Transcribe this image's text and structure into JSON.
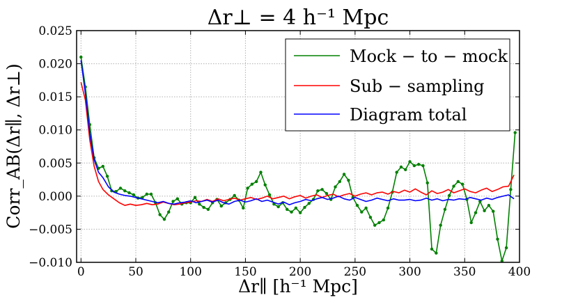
{
  "chart_data": {
    "type": "line",
    "title": "Δr⊥ = 4 h⁻¹ Mpc",
    "xlabel": "Δr∥ [h⁻¹ Mpc]",
    "ylabel": "Corr_AB(Δr∥, Δr⊥)",
    "xlim": [
      -4,
      400
    ],
    "ylim": [
      -0.01,
      0.025
    ],
    "xticks": [
      0,
      50,
      100,
      150,
      200,
      250,
      300,
      350,
      400
    ],
    "xtick_labels": [
      "0",
      "50",
      "100",
      "150",
      "200",
      "250",
      "300",
      "350",
      "400"
    ],
    "yticks": [
      -0.01,
      -0.005,
      0.0,
      0.005,
      0.01,
      0.015,
      0.02,
      0.025
    ],
    "ytick_labels": [
      "−0.010",
      "−0.005",
      "0.000",
      "0.005",
      "0.010",
      "0.015",
      "0.020",
      "0.025"
    ],
    "grid": true,
    "legend_position": "top-right",
    "legend": [
      "Mock − to − mock",
      "Sub − sampling",
      "Diagram total"
    ],
    "series": [
      {
        "name": "Mock − to − mock",
        "color": "#008000",
        "markers": true,
        "x": [
          0,
          4,
          8,
          12,
          16,
          20,
          24,
          28,
          32,
          36,
          40,
          44,
          48,
          52,
          56,
          60,
          64,
          68,
          72,
          76,
          80,
          84,
          88,
          92,
          96,
          100,
          104,
          108,
          112,
          116,
          120,
          124,
          128,
          132,
          136,
          140,
          144,
          148,
          152,
          156,
          160,
          164,
          168,
          172,
          176,
          180,
          184,
          188,
          192,
          196,
          200,
          204,
          208,
          212,
          216,
          220,
          224,
          228,
          232,
          236,
          240,
          244,
          248,
          252,
          256,
          260,
          264,
          268,
          272,
          276,
          280,
          284,
          288,
          292,
          296,
          300,
          304,
          308,
          312,
          316,
          320,
          324,
          328,
          332,
          336,
          340,
          344,
          348,
          352,
          356,
          360,
          364,
          368,
          372,
          376,
          380,
          384,
          388,
          392,
          396
        ],
        "values": [
          0.021,
          0.0165,
          0.0108,
          0.0058,
          0.0042,
          0.0045,
          0.003,
          0.0008,
          0.0007,
          0.0012,
          0.0008,
          0.0005,
          0.0002,
          -0.0003,
          -0.0002,
          0.0003,
          0.0003,
          -0.001,
          -0.0028,
          -0.0035,
          -0.0024,
          -0.0008,
          -0.0004,
          -0.0012,
          -0.001,
          -0.001,
          -0.0002,
          -0.0012,
          -0.0017,
          -0.002,
          -0.001,
          -0.0005,
          -0.0015,
          -0.001,
          -0.0005,
          0.0001,
          -0.0006,
          -0.0018,
          0.0012,
          0.0018,
          0.0022,
          0.0036,
          0.0017,
          0.0002,
          -0.0012,
          -0.0016,
          -0.001,
          -0.002,
          -0.0024,
          -0.0018,
          -0.0025,
          -0.0017,
          -0.0011,
          -0.0005,
          0.0008,
          0.001,
          0.0004,
          -0.0005,
          0.0014,
          0.0022,
          0.0033,
          0.0024,
          -0.0002,
          -0.0014,
          -0.0024,
          -0.0018,
          -0.0032,
          -0.0044,
          -0.004,
          -0.0036,
          -0.0018,
          0.0006,
          0.0036,
          0.0044,
          0.004,
          0.0052,
          0.0046,
          0.0048,
          0.0046,
          0.002,
          -0.008,
          -0.0086,
          -0.0044,
          -0.002,
          0.0001,
          0.0015,
          0.0022,
          0.0018,
          -0.0005,
          -0.004,
          -0.0025,
          -0.0008,
          -0.0022,
          -0.0014,
          -0.0023,
          -0.0065,
          -0.0098,
          -0.0078,
          0.001,
          0.0096
        ]
      },
      {
        "name": "Sub − sampling",
        "color": "#ff0000",
        "markers": false,
        "x": [
          0,
          4,
          8,
          12,
          16,
          20,
          25,
          30,
          35,
          40,
          45,
          50,
          55,
          60,
          65,
          70,
          75,
          80,
          85,
          90,
          95,
          100,
          105,
          110,
          115,
          120,
          125,
          130,
          135,
          140,
          145,
          150,
          155,
          160,
          165,
          170,
          175,
          180,
          185,
          190,
          195,
          200,
          205,
          210,
          215,
          220,
          225,
          230,
          235,
          240,
          245,
          250,
          255,
          260,
          265,
          270,
          275,
          280,
          285,
          290,
          295,
          300,
          305,
          310,
          315,
          320,
          325,
          330,
          335,
          340,
          345,
          350,
          355,
          360,
          365,
          370,
          375,
          380,
          385,
          390,
          395
        ],
        "values": [
          0.0172,
          0.0145,
          0.0085,
          0.0045,
          0.0022,
          0.001,
          0.0002,
          -0.0004,
          -0.001,
          -0.0014,
          -0.0012,
          -0.0014,
          -0.0013,
          -0.0011,
          -0.0013,
          -0.0012,
          -0.0009,
          -0.0011,
          -0.0013,
          -0.0012,
          -0.001,
          -0.0009,
          -0.0007,
          -0.0008,
          -0.0005,
          -0.0008,
          -0.0004,
          -0.0007,
          -0.0005,
          -0.0003,
          -0.0006,
          -0.0004,
          -0.0002,
          -0.0005,
          -0.0003,
          0.0,
          -0.0004,
          -0.0002,
          0.0,
          -0.0004,
          -0.0001,
          0.0001,
          -0.0003,
          0.0,
          0.0002,
          -0.0002,
          0.0001,
          0.0003,
          -0.0001,
          0.0002,
          0.0004,
          0.0,
          0.0003,
          0.0005,
          0.0002,
          0.0005,
          0.0006,
          0.0003,
          0.0007,
          0.0005,
          0.0009,
          0.0006,
          0.0011,
          0.0006,
          0.0002,
          0.0008,
          0.0004,
          0.0006,
          0.001,
          0.0005,
          0.0008,
          0.0011,
          0.0007,
          0.0005,
          0.0009,
          0.0012,
          0.0007,
          0.001,
          0.0014,
          0.0015,
          0.0032
        ]
      },
      {
        "name": "Diagram total",
        "color": "#0000ff",
        "markers": false,
        "x": [
          0,
          4,
          8,
          12,
          16,
          20,
          25,
          30,
          35,
          40,
          45,
          50,
          55,
          60,
          65,
          70,
          75,
          80,
          85,
          90,
          95,
          100,
          105,
          110,
          115,
          120,
          125,
          130,
          135,
          140,
          145,
          150,
          155,
          160,
          165,
          170,
          175,
          180,
          185,
          190,
          195,
          200,
          205,
          210,
          215,
          220,
          225,
          230,
          235,
          240,
          245,
          250,
          255,
          260,
          265,
          270,
          275,
          280,
          285,
          290,
          295,
          300,
          305,
          310,
          315,
          320,
          325,
          330,
          335,
          340,
          345,
          350,
          355,
          360,
          365,
          370,
          375,
          380,
          385,
          390,
          395
        ],
        "values": [
          0.0205,
          0.0155,
          0.0095,
          0.0055,
          0.0036,
          0.0028,
          0.0014,
          0.0006,
          0.0003,
          0.0001,
          0.0,
          -0.0002,
          -0.0004,
          -0.0006,
          -0.0008,
          -0.001,
          -0.0008,
          -0.0011,
          -0.0012,
          -0.001,
          -0.0009,
          -0.0007,
          -0.001,
          -0.0008,
          -0.0006,
          -0.0009,
          -0.0006,
          -0.001,
          -0.0012,
          -0.0008,
          -0.0006,
          -0.0009,
          -0.0007,
          -0.0004,
          -0.0008,
          -0.0006,
          -0.0009,
          -0.0012,
          -0.0009,
          -0.0013,
          -0.001,
          -0.0008,
          -0.0005,
          -0.0007,
          -0.0004,
          -0.0002,
          -0.0005,
          -0.0003,
          0.0,
          -0.0004,
          -0.0006,
          -0.0002,
          -0.0005,
          -0.0008,
          -0.0006,
          -0.0003,
          -0.0005,
          -0.0007,
          -0.0004,
          -0.0006,
          -0.0006,
          -0.0005,
          -0.0007,
          -0.0006,
          -0.0003,
          -0.0006,
          -0.0004,
          -0.0007,
          -0.0005,
          -0.0006,
          -0.0004,
          -0.0005,
          -0.0002,
          -0.0004,
          -0.0006,
          -0.0003,
          -0.0005,
          -0.0002,
          0.0,
          0.0002,
          -0.0004
        ]
      }
    ]
  }
}
